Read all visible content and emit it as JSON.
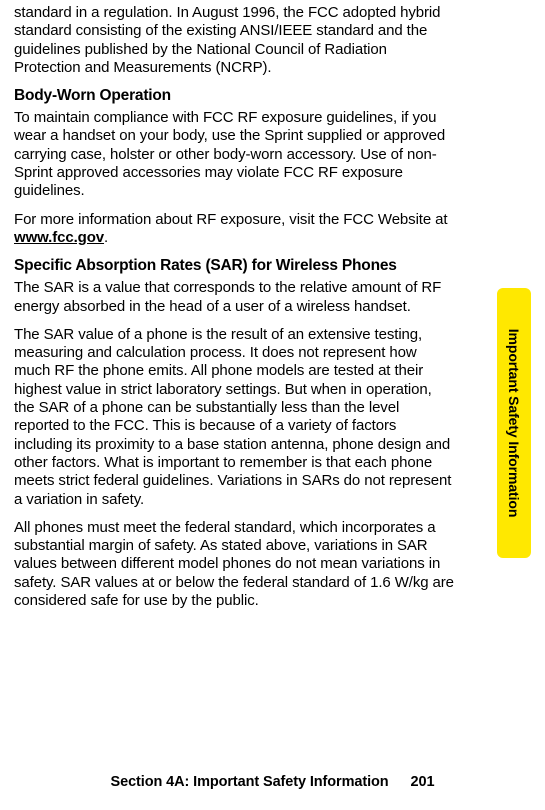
{
  "paragraphs": {
    "p1": "standard in a regulation. In August 1996, the FCC adopted hybrid standard consisting of the existing ANSI/IEEE standard and the guidelines published by the National Council of Radiation Protection and Measurements (NCRP).",
    "h1": "Body-Worn Operation",
    "p2": "To maintain compliance with FCC RF exposure guidelines, if you wear a handset on your body, use the Sprint supplied or approved carrying case, holster or other body-worn accessory. Use of non-Sprint approved accessories may violate FCC RF exposure guidelines.",
    "p3_pre": "For more information about RF exposure, visit the FCC Website at ",
    "p3_link": "www.fcc.gov",
    "p3_post": ".",
    "h2": "Specific Absorption Rates (SAR) for Wireless Phones",
    "p4": "The SAR is a value that corresponds to the relative amount of RF energy absorbed in the head of a user of a wireless handset.",
    "p5": "The SAR value of a phone is the result of an extensive testing, measuring and calculation process. It does not represent how much RF the phone emits. All phone models are tested at their highest value in strict laboratory settings. But when in operation, the SAR of a phone can be substantially less than the level reported to the FCC. This is because of a variety of factors including its proximity to a base station antenna, phone design and other factors. What is important to remember is that each phone meets strict federal guidelines. Variations in SARs do not represent a variation in safety.",
    "p6": "All phones must meet the federal standard, which incorporates a substantial margin of safety. As stated above, variations in SAR values between different model phones do not mean variations in safety. SAR values at or below the federal standard of 1.6 W/kg are considered safe for use by the public."
  },
  "side_tab": {
    "label": "Important Safety Information",
    "bg_color": "#ffe800"
  },
  "footer": {
    "section": "Section 4A: Important Safety Information",
    "page": "201"
  }
}
